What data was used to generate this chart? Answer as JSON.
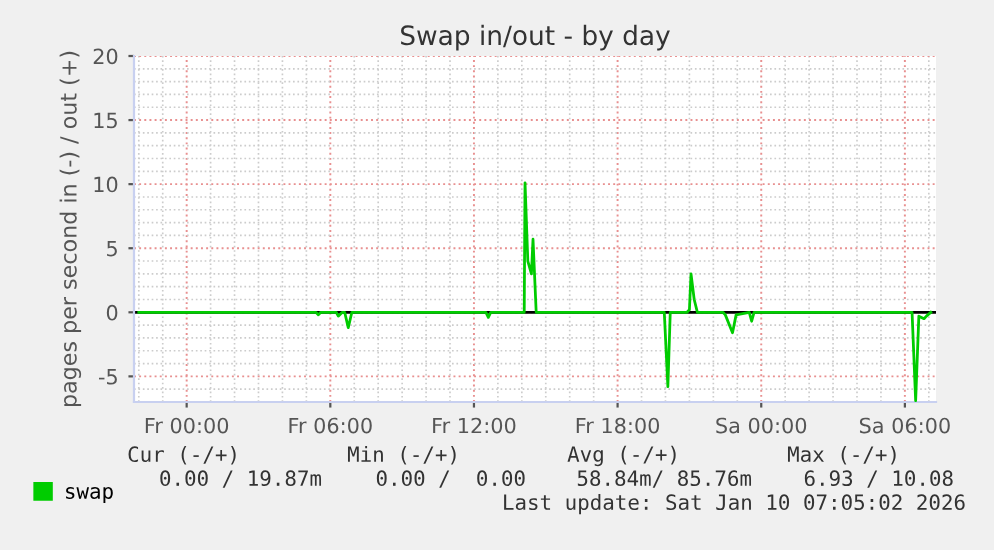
{
  "chart_data": {
    "type": "line",
    "title": "Swap in/out - by day",
    "ylabel": "pages per second in (-) / out (+)",
    "xlim": [
      "2026-01-08T21:48",
      "2026-01-10T07:18"
    ],
    "ylim": [
      -7.0,
      20
    ],
    "xticks": [
      {
        "value": "2026-01-09T00:00",
        "label": "Fr 00:00"
      },
      {
        "value": "2026-01-09T06:00",
        "label": "Fr 06:00"
      },
      {
        "value": "2026-01-09T12:00",
        "label": "Fr 12:00"
      },
      {
        "value": "2026-01-09T18:00",
        "label": "Fr 18:00"
      },
      {
        "value": "2026-01-10T00:00",
        "label": "Sa 00:00"
      },
      {
        "value": "2026-01-10T06:00",
        "label": "Sa 06:00"
      }
    ],
    "yticks": [
      -5,
      0,
      5,
      10,
      15,
      20
    ],
    "grid": true,
    "legend": "bottom left",
    "marker": "none",
    "line_style": "solid",
    "ref_lines": [
      {
        "axis": "y",
        "value": 0,
        "color": "#000000"
      }
    ],
    "series": [
      {
        "name": "swap",
        "color": "#00cc00",
        "x": [
          "2026-01-08T22:00",
          "2026-01-09T05:24",
          "2026-01-09T05:30",
          "2026-01-09T05:36",
          "2026-01-09T06:15",
          "2026-01-09T06:20",
          "2026-01-09T06:30",
          "2026-01-09T06:36",
          "2026-01-09T06:45",
          "2026-01-09T06:54",
          "2026-01-09T12:30",
          "2026-01-09T12:36",
          "2026-01-09T12:42",
          "2026-01-09T14:06",
          "2026-01-09T14:08",
          "2026-01-09T14:15",
          "2026-01-09T14:24",
          "2026-01-09T14:28",
          "2026-01-09T14:36",
          "2026-01-09T19:57",
          "2026-01-09T20:06",
          "2026-01-09T20:12",
          "2026-01-09T20:54",
          "2026-01-09T21:00",
          "2026-01-09T21:04",
          "2026-01-09T21:12",
          "2026-01-09T21:20",
          "2026-01-09T22:24",
          "2026-01-09T22:30",
          "2026-01-09T22:48",
          "2026-01-09T22:57",
          "2026-01-09T23:30",
          "2026-01-09T23:36",
          "2026-01-09T23:42",
          "2026-01-10T06:18",
          "2026-01-10T06:27",
          "2026-01-10T06:35",
          "2026-01-10T06:48",
          "2026-01-10T06:54",
          "2026-01-10T07:05"
        ],
        "values": [
          0,
          0,
          -0.2,
          0,
          0,
          -0.3,
          0,
          0,
          -1.2,
          0,
          0,
          -0.4,
          0,
          0,
          10.1,
          4.0,
          3.0,
          5.7,
          0,
          0,
          -5.8,
          0,
          0,
          0.2,
          3.0,
          1.0,
          0,
          0,
          -0.2,
          -1.6,
          -0.2,
          0,
          -0.7,
          0,
          0,
          -6.9,
          -0.3,
          -0.5,
          -0.3,
          0
        ]
      }
    ],
    "annotations": [
      "Cur (-/+)",
      "Min (-/+)",
      "Avg (-/+)",
      "Max (-/+)",
      "0.00 / 19.87m",
      "0.00 /  0.00",
      "58.84m/ 85.76m",
      "6.93 / 10.08",
      "Last update: Sat Jan 10 07:05:02 2026"
    ]
  }
}
